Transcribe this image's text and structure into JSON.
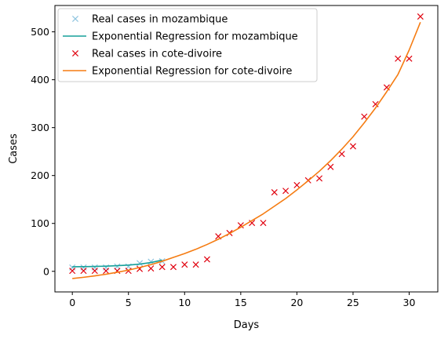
{
  "chart_data": {
    "type": "scatter",
    "title": "",
    "xlabel": "Days",
    "ylabel": "Cases",
    "xlim": [
      -1.55,
      32.55
    ],
    "ylim": [
      -43,
      555
    ],
    "xticks": [
      0,
      5,
      10,
      15,
      20,
      25,
      30
    ],
    "yticks": [
      0,
      100,
      200,
      300,
      400,
      500
    ],
    "grid": false,
    "legend_position": "top-left",
    "series": [
      {
        "name": "Real cases in mozambique",
        "kind": "markers",
        "marker": "x",
        "color": "#8fc5e0",
        "x": [
          0,
          1,
          2,
          3,
          4,
          5,
          6,
          7,
          8
        ],
        "y": [
          8,
          8,
          8,
          8,
          10,
          10,
          17,
          20,
          21
        ]
      },
      {
        "name": "Exponential Regression for mozambique",
        "kind": "line",
        "color": "#17a09a",
        "x": [
          0,
          1,
          2,
          3,
          4,
          5,
          6,
          7,
          8
        ],
        "y": [
          9.5,
          9.8,
          10.2,
          10.8,
          11.7,
          13.0,
          15.0,
          18.3,
          23.5
        ]
      },
      {
        "name": "Real cases in cote-divoire",
        "kind": "markers",
        "marker": "x",
        "color": "#e0000e",
        "x": [
          0,
          1,
          2,
          3,
          4,
          5,
          6,
          7,
          8,
          9,
          10,
          11,
          12,
          13,
          14,
          15,
          16,
          17,
          18,
          19,
          20,
          21,
          22,
          23,
          24,
          25,
          26,
          27,
          28,
          29,
          30,
          31
        ],
        "y": [
          1,
          1,
          1,
          1,
          1,
          1,
          5,
          6,
          9,
          9,
          14,
          14,
          25,
          73,
          80,
          96,
          101,
          101,
          165,
          168,
          180,
          190,
          194,
          218,
          245,
          261,
          323,
          349,
          384,
          444,
          444,
          532
        ]
      },
      {
        "name": "Exponential Regression for cote-divoire",
        "kind": "line",
        "color": "#f57c12",
        "x": [
          0,
          1,
          2,
          3,
          4,
          5,
          6,
          7,
          8,
          9,
          10,
          11,
          12,
          13,
          14,
          15,
          16,
          17,
          18,
          19,
          20,
          21,
          22,
          23,
          24,
          25,
          26,
          27,
          28,
          29,
          30,
          31
        ],
        "y": [
          -15,
          -12.5,
          -9.5,
          -6,
          -2,
          2.5,
          8,
          14,
          21,
          29,
          37,
          46,
          56,
          67,
          79,
          92,
          106,
          120,
          136,
          152,
          170,
          189,
          209,
          231,
          255,
          281,
          310,
          341,
          375,
          411,
          462,
          520
        ]
      }
    ]
  }
}
